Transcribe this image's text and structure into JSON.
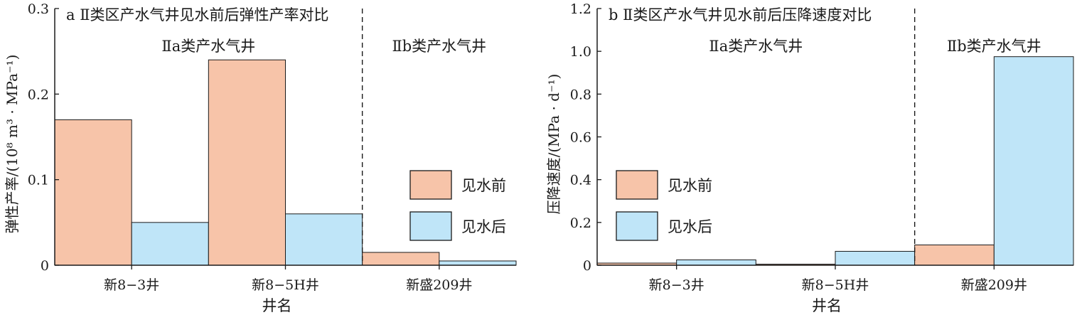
{
  "colors": {
    "before": "#f7c4a9",
    "after": "#bfe5f8",
    "axis": "#1a1a1a"
  },
  "chart_data": [
    {
      "type": "bar",
      "title": "a Ⅱ类区产水气井见水前后弹性产率对比",
      "xlabel": "井名",
      "ylabel": "弹性产率/(10⁸ m³ · MPa⁻¹)",
      "categories": [
        "新8−3井",
        "新8−5H井",
        "新盛209井"
      ],
      "series": [
        {
          "name": "见水前",
          "values": [
            0.17,
            0.24,
            0.015
          ]
        },
        {
          "name": "见水后",
          "values": [
            0.05,
            0.06,
            0.005
          ]
        }
      ],
      "ylim": [
        0,
        0.3
      ],
      "yticks": [
        "0",
        "0.1",
        "0.2",
        "0.3"
      ],
      "group_labels": [
        "Ⅱa类产水气井",
        "Ⅱb类产水气井"
      ],
      "legend_position": "bottom-right",
      "grid": false
    },
    {
      "type": "bar",
      "title": "b Ⅱ类区产水气井见水前后压降速度对比",
      "xlabel": "井名",
      "ylabel": "压降速度/(MPa · d⁻¹)",
      "categories": [
        "新8−3井",
        "新8−5H井",
        "新盛209井"
      ],
      "series": [
        {
          "name": "见水前",
          "values": [
            0.01,
            0.005,
            0.095
          ]
        },
        {
          "name": "见水后",
          "values": [
            0.025,
            0.065,
            0.975
          ]
        }
      ],
      "ylim": [
        0,
        1.2
      ],
      "yticks": [
        "0",
        "0.2",
        "0.4",
        "0.6",
        "0.8",
        "1.0",
        "1.2"
      ],
      "group_labels": [
        "Ⅱa类产水气井",
        "Ⅱb类产水气井"
      ],
      "legend_position": "middle-left",
      "grid": false
    }
  ]
}
